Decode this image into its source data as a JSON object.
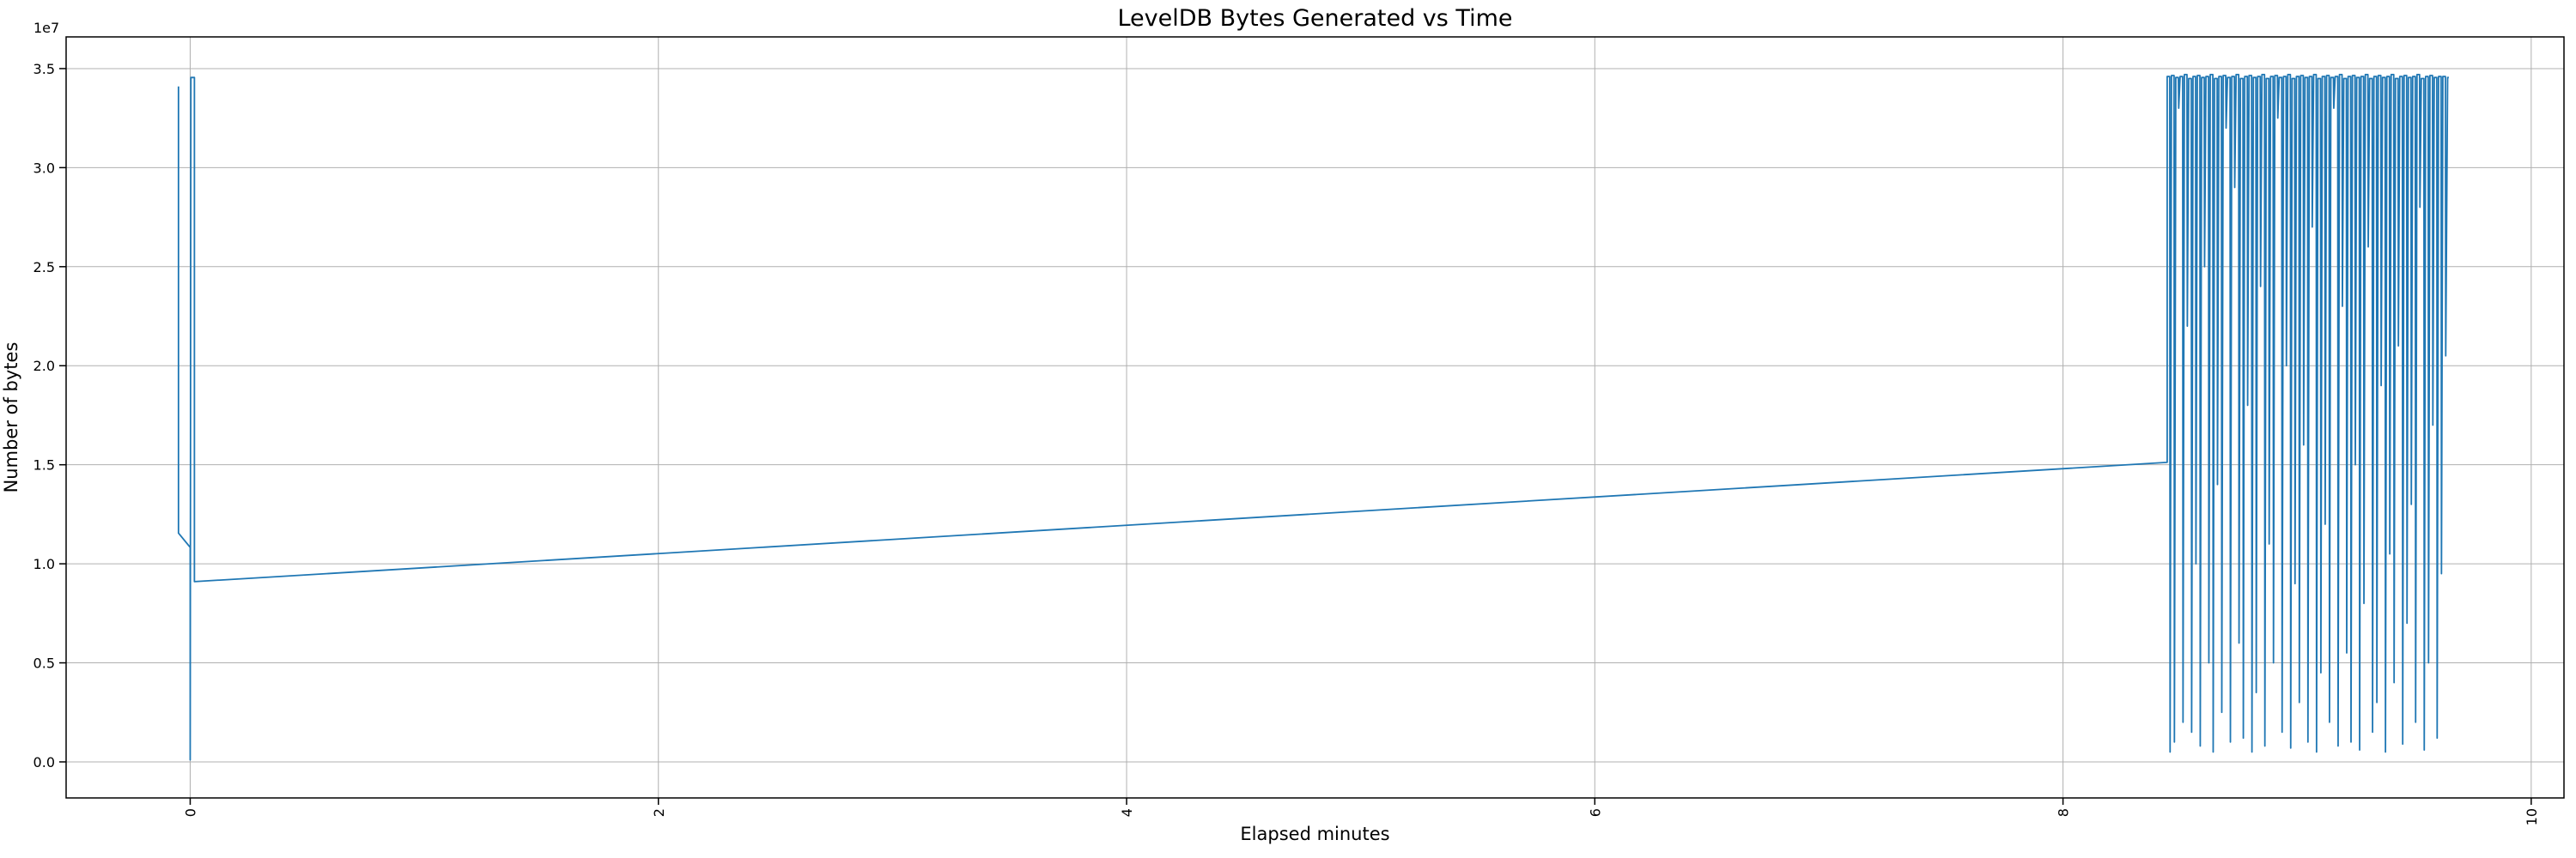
{
  "figure": {
    "title": "LevelDB Bytes Generated vs Time",
    "xlabel": "Elapsed minutes",
    "ylabel": "Number of bytes",
    "offset_text": "1e7",
    "background": "#ffffff"
  },
  "chart_data": {
    "type": "line",
    "title": "LevelDB Bytes Generated vs Time",
    "xlabel": "Elapsed minutes",
    "ylabel": "Number of bytes",
    "y_offset_factor": "1e7",
    "line_color": "#1f77b4",
    "grid": true,
    "grid_color": "#b0b0b0",
    "spine_color": "#000000",
    "legend": "none",
    "xlim": [
      -0.53,
      10.14
    ],
    "ylim": [
      -1820000,
      36600000
    ],
    "x_ticks": [
      0,
      2,
      4,
      6,
      8,
      10
    ],
    "x_tick_labels": [
      "0",
      "2",
      "4",
      "6",
      "8",
      "10"
    ],
    "x_tick_rotation": 90,
    "y_ticks": [
      0,
      5000000,
      10000000,
      15000000,
      20000000,
      25000000,
      30000000,
      35000000
    ],
    "y_tick_labels": [
      "0.0",
      "0.5",
      "1.0",
      "1.5",
      "2.0",
      "2.5",
      "3.0",
      "3.5"
    ],
    "points": [
      [
        -0.05,
        34100000
      ],
      [
        -0.05,
        11550000
      ],
      [
        0.0,
        10830000
      ],
      [
        0.0,
        100000
      ],
      [
        0.003,
        34550000
      ],
      [
        0.018,
        34550000
      ],
      [
        0.018,
        9100000
      ],
      [
        8.445,
        15120000
      ],
      [
        8.445,
        34600000
      ],
      [
        8.456,
        34600000
      ],
      [
        8.4575,
        500000
      ],
      [
        8.4634,
        34650000
      ],
      [
        8.4744,
        34650000
      ],
      [
        8.4759,
        1000000
      ],
      [
        8.4818,
        34550000
      ],
      [
        8.4928,
        34550000
      ],
      [
        8.4943,
        33000000
      ],
      [
        8.5002,
        34600000
      ],
      [
        8.5112,
        34600000
      ],
      [
        8.5127,
        2000000
      ],
      [
        8.5186,
        34700000
      ],
      [
        8.5296,
        34700000
      ],
      [
        8.5311,
        22000000
      ],
      [
        8.537,
        34500000
      ],
      [
        8.548,
        34500000
      ],
      [
        8.5495,
        1500000
      ],
      [
        8.5554,
        34600000
      ],
      [
        8.5664,
        34600000
      ],
      [
        8.5679,
        10000000
      ],
      [
        8.5738,
        34650000
      ],
      [
        8.5848,
        34650000
      ],
      [
        8.5863,
        800000
      ],
      [
        8.5922,
        34550000
      ],
      [
        8.6032,
        34550000
      ],
      [
        8.6047,
        25000000
      ],
      [
        8.6106,
        34600000
      ],
      [
        8.6216,
        34600000
      ],
      [
        8.6231,
        5000000
      ],
      [
        8.629,
        34700000
      ],
      [
        8.64,
        34700000
      ],
      [
        8.6415,
        500000
      ],
      [
        8.6474,
        34500000
      ],
      [
        8.6584,
        34500000
      ],
      [
        8.6599,
        14000000
      ],
      [
        8.6658,
        34600000
      ],
      [
        8.6768,
        34600000
      ],
      [
        8.6783,
        2500000
      ],
      [
        8.6842,
        34650000
      ],
      [
        8.6952,
        34650000
      ],
      [
        8.6967,
        32000000
      ],
      [
        8.7026,
        34550000
      ],
      [
        8.7136,
        34550000
      ],
      [
        8.7151,
        1000000
      ],
      [
        8.721,
        34600000
      ],
      [
        8.732,
        34600000
      ],
      [
        8.7335,
        29000000
      ],
      [
        8.7394,
        34700000
      ],
      [
        8.7504,
        34700000
      ],
      [
        8.7519,
        6000000
      ],
      [
        8.7578,
        34500000
      ],
      [
        8.7688,
        34500000
      ],
      [
        8.7703,
        1200000
      ],
      [
        8.7762,
        34600000
      ],
      [
        8.7872,
        34600000
      ],
      [
        8.7887,
        18000000
      ],
      [
        8.7946,
        34650000
      ],
      [
        8.8056,
        34650000
      ],
      [
        8.8071,
        500000
      ],
      [
        8.813,
        34550000
      ],
      [
        8.824,
        34550000
      ],
      [
        8.8255,
        3500000
      ],
      [
        8.8314,
        34600000
      ],
      [
        8.8424,
        34600000
      ],
      [
        8.8439,
        24000000
      ],
      [
        8.8498,
        34700000
      ],
      [
        8.8608,
        34700000
      ],
      [
        8.8623,
        800000
      ],
      [
        8.8682,
        34500000
      ],
      [
        8.8792,
        34500000
      ],
      [
        8.8807,
        11000000
      ],
      [
        8.8866,
        34600000
      ],
      [
        8.8976,
        34600000
      ],
      [
        8.8991,
        5000000
      ],
      [
        8.905,
        34650000
      ],
      [
        8.916,
        34650000
      ],
      [
        8.9175,
        32500000
      ],
      [
        8.9234,
        34550000
      ],
      [
        8.9344,
        34550000
      ],
      [
        8.9359,
        1500000
      ],
      [
        8.9418,
        34600000
      ],
      [
        8.9528,
        34600000
      ],
      [
        8.9543,
        20000000
      ],
      [
        8.9602,
        34700000
      ],
      [
        8.9712,
        34700000
      ],
      [
        8.9727,
        700000
      ],
      [
        8.9786,
        34500000
      ],
      [
        8.9896,
        34500000
      ],
      [
        8.9911,
        9000000
      ],
      [
        8.997,
        34600000
      ],
      [
        9.008,
        34600000
      ],
      [
        9.0095,
        3000000
      ],
      [
        9.0154,
        34650000
      ],
      [
        9.0264,
        34650000
      ],
      [
        9.0279,
        16000000
      ],
      [
        9.0338,
        34550000
      ],
      [
        9.0448,
        34550000
      ],
      [
        9.0463,
        1000000
      ],
      [
        9.0522,
        34600000
      ],
      [
        9.0632,
        34600000
      ],
      [
        9.0647,
        27000000
      ],
      [
        9.0706,
        34700000
      ],
      [
        9.0816,
        34700000
      ],
      [
        9.0831,
        500000
      ],
      [
        9.089,
        34500000
      ],
      [
        9.1,
        34500000
      ],
      [
        9.1015,
        4500000
      ],
      [
        9.1074,
        34600000
      ],
      [
        9.1184,
        34600000
      ],
      [
        9.1199,
        12000000
      ],
      [
        9.1258,
        34650000
      ],
      [
        9.1368,
        34650000
      ],
      [
        9.1383,
        2000000
      ],
      [
        9.1442,
        34550000
      ],
      [
        9.1552,
        34550000
      ],
      [
        9.1567,
        33000000
      ],
      [
        9.1626,
        34600000
      ],
      [
        9.1736,
        34600000
      ],
      [
        9.1751,
        800000
      ],
      [
        9.181,
        34700000
      ],
      [
        9.192,
        34700000
      ],
      [
        9.1935,
        23000000
      ],
      [
        9.1994,
        34500000
      ],
      [
        9.2104,
        34500000
      ],
      [
        9.2119,
        5500000
      ],
      [
        9.2178,
        34600000
      ],
      [
        9.2288,
        34600000
      ],
      [
        9.2303,
        1000000
      ],
      [
        9.2362,
        34650000
      ],
      [
        9.2472,
        34650000
      ],
      [
        9.2487,
        15000000
      ],
      [
        9.2546,
        34550000
      ],
      [
        9.2656,
        34550000
      ],
      [
        9.2671,
        600000
      ],
      [
        9.273,
        34600000
      ],
      [
        9.284,
        34600000
      ],
      [
        9.2855,
        8000000
      ],
      [
        9.2914,
        34700000
      ],
      [
        9.3024,
        34700000
      ],
      [
        9.3039,
        26000000
      ],
      [
        9.3098,
        34500000
      ],
      [
        9.3208,
        34500000
      ],
      [
        9.3223,
        1500000
      ],
      [
        9.3282,
        34600000
      ],
      [
        9.3392,
        34600000
      ],
      [
        9.3407,
        3000000
      ],
      [
        9.3466,
        34650000
      ],
      [
        9.3576,
        34650000
      ],
      [
        9.3591,
        19000000
      ],
      [
        9.365,
        34550000
      ],
      [
        9.376,
        34550000
      ],
      [
        9.3775,
        500000
      ],
      [
        9.3834,
        34600000
      ],
      [
        9.3944,
        34600000
      ],
      [
        9.3959,
        10500000
      ],
      [
        9.4018,
        34700000
      ],
      [
        9.4128,
        34700000
      ],
      [
        9.4143,
        4000000
      ],
      [
        9.4202,
        34500000
      ],
      [
        9.4312,
        34500000
      ],
      [
        9.4327,
        21000000
      ],
      [
        9.4386,
        34600000
      ],
      [
        9.4496,
        34600000
      ],
      [
        9.4511,
        900000
      ],
      [
        9.457,
        34650000
      ],
      [
        9.468,
        34650000
      ],
      [
        9.4695,
        7000000
      ],
      [
        9.4754,
        34550000
      ],
      [
        9.4864,
        34550000
      ],
      [
        9.4879,
        13000000
      ],
      [
        9.4938,
        34600000
      ],
      [
        9.5048,
        34600000
      ],
      [
        9.5063,
        2000000
      ],
      [
        9.5122,
        34700000
      ],
      [
        9.5232,
        34700000
      ],
      [
        9.5247,
        28000000
      ],
      [
        9.5306,
        34500000
      ],
      [
        9.5416,
        34500000
      ],
      [
        9.5431,
        600000
      ],
      [
        9.549,
        34600000
      ],
      [
        9.56,
        34600000
      ],
      [
        9.5615,
        5000000
      ],
      [
        9.5674,
        34650000
      ],
      [
        9.5784,
        34650000
      ],
      [
        9.5799,
        17000000
      ],
      [
        9.5858,
        34550000
      ],
      [
        9.5968,
        34550000
      ],
      [
        9.5983,
        1200000
      ],
      [
        9.6042,
        34600000
      ],
      [
        9.6152,
        34600000
      ],
      [
        9.6167,
        9500000
      ],
      [
        9.6226,
        34600000
      ],
      [
        9.6336,
        34600000
      ],
      [
        9.6349,
        20500000
      ],
      [
        9.643,
        34550000
      ],
      [
        9.648,
        34550000
      ]
    ]
  }
}
